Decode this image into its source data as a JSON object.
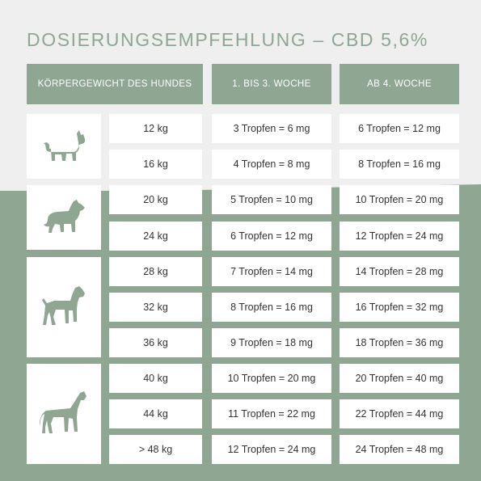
{
  "title": "DOSIERUNGSEMPFEHLUNG – CBD 5,6%",
  "headers": [
    "KÖRPERGEWICHT DES HUNDES",
    "1. BIS 3. WOCHE",
    "AB 4. WOCHE"
  ],
  "groups": [
    {
      "icon": "french-bulldog-icon"
    },
    {
      "icon": "shepherd-dog-icon"
    },
    {
      "icon": "mastiff-dog-icon"
    },
    {
      "icon": "great-dane-icon"
    }
  ],
  "rows": [
    {
      "weight": "12 kg",
      "week1to3": "3 Tropfen = 6 mg",
      "week4": "6 Tropfen = 12 mg"
    },
    {
      "weight": "16 kg",
      "week1to3": "4 Tropfen = 8 mg",
      "week4": "8 Tropfen = 16 mg"
    },
    {
      "weight": "20 kg",
      "week1to3": "5 Tropfen = 10 mg",
      "week4": "10 Tropfen = 20 mg"
    },
    {
      "weight": "24 kg",
      "week1to3": "6 Tropfen = 12 mg",
      "week4": "12 Tropfen = 24 mg"
    },
    {
      "weight": "28 kg",
      "week1to3": "7 Tropfen = 14 mg",
      "week4": "14 Tropfen = 28 mg"
    },
    {
      "weight": "32 kg",
      "week1to3": "8 Tropfen = 16 mg",
      "week4": "16 Tropfen = 32 mg"
    },
    {
      "weight": "36 kg",
      "week1to3": "9 Tropfen = 18 mg",
      "week4": "18 Tropfen = 36 mg"
    },
    {
      "weight": "40 kg",
      "week1to3": "10 Tropfen = 20 mg",
      "week4": "20 Tropfen = 40 mg"
    },
    {
      "weight": "44 kg",
      "week1to3": "11 Tropfen = 22 mg",
      "week4": "22 Tropfen = 44 mg"
    },
    {
      "weight": "> 48 kg",
      "week1to3": "12 Tropfen = 24 mg",
      "week4": "24 Tropfen = 48 mg"
    }
  ],
  "colors": {
    "accent": "#8fa693",
    "cell": "#ffffff",
    "background": "#efefef"
  }
}
